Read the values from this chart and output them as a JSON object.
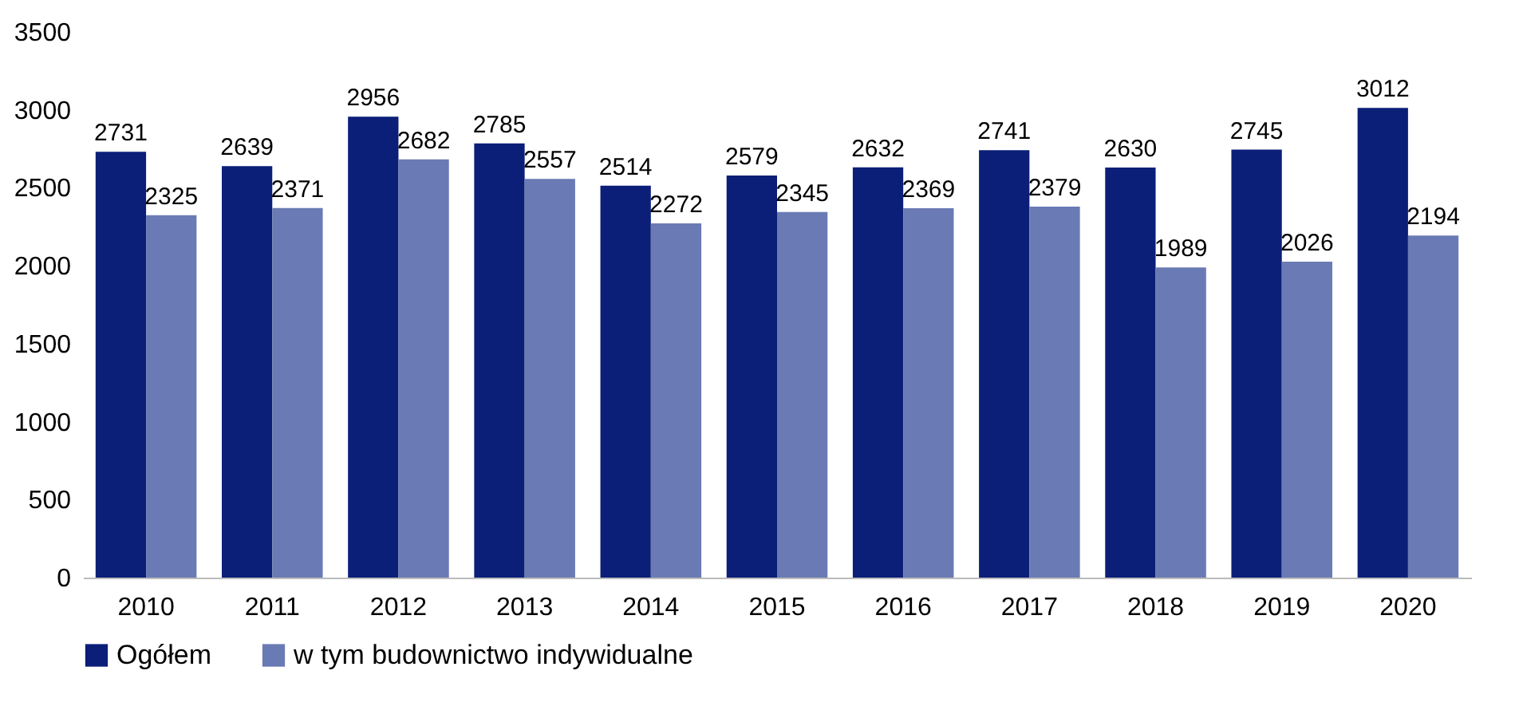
{
  "chart_data": {
    "type": "bar",
    "categories": [
      "2010",
      "2011",
      "2012",
      "2013",
      "2014",
      "2015",
      "2016",
      "2017",
      "2018",
      "2019",
      "2020"
    ],
    "series": [
      {
        "name": "Ogółem",
        "color": "#0b1f78",
        "values": [
          2731,
          2639,
          2956,
          2785,
          2514,
          2579,
          2632,
          2741,
          2630,
          2745,
          3012
        ]
      },
      {
        "name": "w tym budownictwo indywidualne",
        "color": "#6a7ab4",
        "values": [
          2325,
          2371,
          2682,
          2557,
          2272,
          2345,
          2369,
          2379,
          1989,
          2026,
          2194
        ]
      }
    ],
    "ylim": [
      0,
      3500
    ],
    "yticks": [
      0,
      500,
      1000,
      1500,
      2000,
      2500,
      3000,
      3500
    ],
    "data_labels": true,
    "legend": "bottom",
    "grid": false
  }
}
